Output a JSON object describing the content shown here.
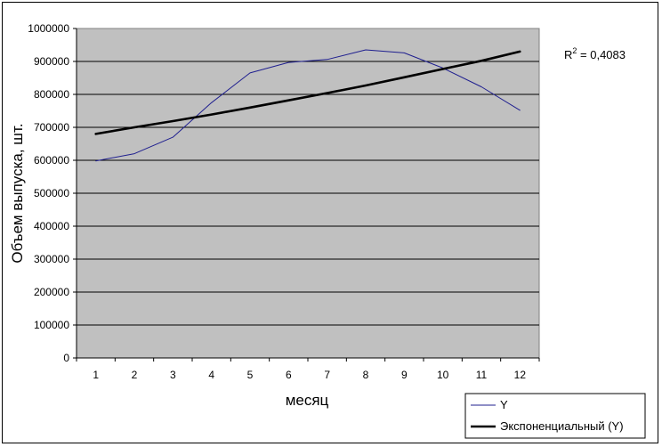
{
  "chart_data": {
    "type": "line",
    "title": "",
    "xlabel": "месяц",
    "ylabel": "Объем выпуска, шт.",
    "categories": [
      "1",
      "2",
      "3",
      "4",
      "5",
      "6",
      "7",
      "8",
      "9",
      "10",
      "11",
      "12"
    ],
    "x": [
      1,
      2,
      3,
      4,
      5,
      6,
      7,
      8,
      9,
      10,
      11,
      12
    ],
    "ylim": [
      0,
      1000000
    ],
    "yticks": [
      "0",
      "100000",
      "200000",
      "300000",
      "400000",
      "500000",
      "600000",
      "700000",
      "800000",
      "900000",
      "1000000"
    ],
    "series": [
      {
        "name": "Y",
        "color": "#1f1f8f",
        "values": [
          598000,
          620000,
          670000,
          775000,
          865000,
          897000,
          906000,
          935000,
          926000,
          880000,
          823000,
          752000
        ]
      },
      {
        "name": "Экспоненциальный (Y)",
        "color": "#000000",
        "trendline": "exponential",
        "values": [
          680000,
          700000,
          719000,
          739000,
          760000,
          782000,
          804000,
          827000,
          852000,
          877000,
          902000,
          930000
        ]
      }
    ],
    "annotation": "R² = 0,4083",
    "grid": "horizontal",
    "plot_background": "#c0c0c0",
    "legend": "bottom-right"
  }
}
